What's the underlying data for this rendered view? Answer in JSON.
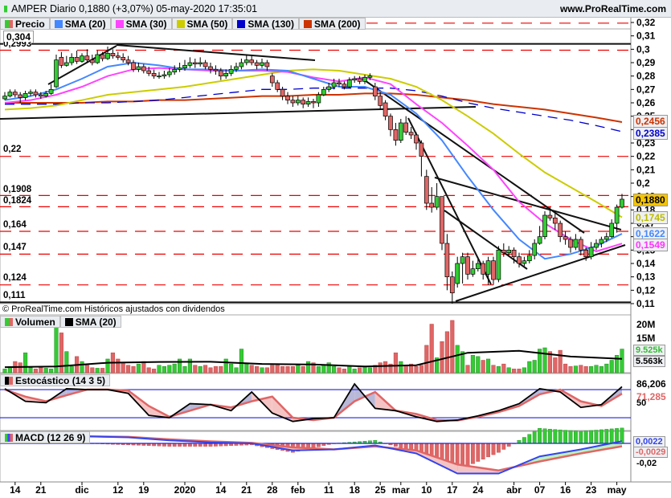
{
  "header": {
    "title": "AMPER Diario 0,1880 (+3,07%) 05-may-2020 17:35:01",
    "site": "www.ProRealTime.com"
  },
  "legend": [
    {
      "label": "Precio",
      "color": "#e06666"
    },
    {
      "label": "SMA (20)",
      "color": "#4488ff"
    },
    {
      "label": "SMA (30)",
      "color": "#ff44ff"
    },
    {
      "label": "SMA (50)",
      "color": "#cccc00"
    },
    {
      "label": "SMA (130)",
      "color": "#0000cc"
    },
    {
      "label": "SMA (200)",
      "color": "#cc3300"
    }
  ],
  "copyright": "© ProRealTime.com  Históricos ajustados con dividendos",
  "levels": {
    "top_label": "0,304",
    "labels": [
      "0,2993",
      "0,22",
      "0,1908",
      "0,1824",
      "0,164",
      "0,147",
      "0,124",
      "0,111"
    ]
  },
  "price_axis": [
    "0,32",
    "0,31",
    "0,3",
    "0,29",
    "0,28",
    "0,27",
    "0,26",
    "0,25",
    "0,24",
    "0,23",
    "0,22",
    "0,21",
    "0,2",
    "0,19",
    "0,18",
    "0,17",
    "0,16",
    "0,15",
    "0,14",
    "0,13",
    "0,12",
    "0,11"
  ],
  "badges": {
    "sma200": "0,2456",
    "sma130": "0,2385",
    "price": "0,1880",
    "sma50": "0,1745",
    "sma20": "0,1622",
    "sma30": "0,1549"
  },
  "volume": {
    "legend": [
      "Volumen",
      "SMA (20)"
    ],
    "axis": [
      "20M",
      "15M"
    ],
    "last": "9.525k",
    "sma_last": "5.563k"
  },
  "stochastic": {
    "legend": "Estocástico (14 3 5)",
    "k_last": "86,206",
    "d_last": "71,285",
    "axis": "50"
  },
  "macd": {
    "legend": "MACD (12 26 9)",
    "macd_last": "0,0022",
    "signal_last": "-0,0029",
    "axis": "-0,02"
  },
  "date_axis": [
    "14",
    "21",
    "dic",
    "12",
    "19",
    "2020",
    "14",
    "21",
    "28",
    "feb",
    "11",
    "18",
    "25",
    "mar",
    "10",
    "17",
    "24",
    "abr",
    "07",
    "16",
    "23",
    "may"
  ],
  "chart_data": {
    "type": "candlestick",
    "ylim": [
      0.11,
      0.32
    ],
    "candles_ohlc": [
      [
        0.263,
        0.268,
        0.262,
        0.265
      ],
      [
        0.265,
        0.27,
        0.264,
        0.268
      ],
      [
        0.268,
        0.27,
        0.264,
        0.266
      ],
      [
        0.266,
        0.268,
        0.26,
        0.264
      ],
      [
        0.264,
        0.269,
        0.262,
        0.267
      ],
      [
        0.267,
        0.27,
        0.265,
        0.268
      ],
      [
        0.268,
        0.27,
        0.264,
        0.266
      ],
      [
        0.266,
        0.268,
        0.263,
        0.265
      ],
      [
        0.265,
        0.269,
        0.264,
        0.267
      ],
      [
        0.267,
        0.274,
        0.266,
        0.27
      ],
      [
        0.272,
        0.296,
        0.271,
        0.292
      ],
      [
        0.294,
        0.298,
        0.286,
        0.288
      ],
      [
        0.288,
        0.295,
        0.287,
        0.29
      ],
      [
        0.29,
        0.297,
        0.288,
        0.294
      ],
      [
        0.294,
        0.299,
        0.289,
        0.291
      ],
      [
        0.291,
        0.297,
        0.29,
        0.295
      ],
      [
        0.295,
        0.3,
        0.29,
        0.292
      ],
      [
        0.292,
        0.296,
        0.288,
        0.29
      ],
      [
        0.29,
        0.299,
        0.289,
        0.296
      ],
      [
        0.296,
        0.298,
        0.291,
        0.293
      ],
      [
        0.293,
        0.302,
        0.292,
        0.297
      ],
      [
        0.297,
        0.3,
        0.293,
        0.295
      ],
      [
        0.295,
        0.298,
        0.292,
        0.294
      ],
      [
        0.294,
        0.297,
        0.29,
        0.292
      ],
      [
        0.292,
        0.295,
        0.288,
        0.29
      ],
      [
        0.29,
        0.292,
        0.283,
        0.285
      ],
      [
        0.285,
        0.29,
        0.283,
        0.287
      ],
      [
        0.287,
        0.289,
        0.282,
        0.284
      ],
      [
        0.284,
        0.287,
        0.28,
        0.282
      ],
      [
        0.282,
        0.285,
        0.278,
        0.28
      ],
      [
        0.28,
        0.283,
        0.278,
        0.28
      ],
      [
        0.28,
        0.284,
        0.278,
        0.281
      ],
      [
        0.281,
        0.286,
        0.279,
        0.283
      ],
      [
        0.283,
        0.288,
        0.281,
        0.285
      ],
      [
        0.285,
        0.29,
        0.283,
        0.286
      ],
      [
        0.286,
        0.292,
        0.284,
        0.288
      ],
      [
        0.288,
        0.294,
        0.286,
        0.29
      ],
      [
        0.29,
        0.293,
        0.286,
        0.289
      ],
      [
        0.289,
        0.294,
        0.287,
        0.29
      ],
      [
        0.29,
        0.292,
        0.285,
        0.287
      ],
      [
        0.287,
        0.29,
        0.282,
        0.285
      ],
      [
        0.285,
        0.288,
        0.281,
        0.284
      ],
      [
        0.284,
        0.286,
        0.277,
        0.28
      ],
      [
        0.28,
        0.285,
        0.278,
        0.282
      ],
      [
        0.282,
        0.288,
        0.28,
        0.285
      ],
      [
        0.285,
        0.29,
        0.283,
        0.287
      ],
      [
        0.287,
        0.293,
        0.285,
        0.29
      ],
      [
        0.29,
        0.296,
        0.288,
        0.292
      ],
      [
        0.292,
        0.295,
        0.288,
        0.29
      ],
      [
        0.29,
        0.292,
        0.285,
        0.288
      ],
      [
        0.288,
        0.293,
        0.286,
        0.29
      ],
      [
        0.29,
        0.292,
        0.284,
        0.287
      ],
      [
        0.28,
        0.282,
        0.272,
        0.275
      ],
      [
        0.275,
        0.277,
        0.268,
        0.27
      ],
      [
        0.27,
        0.272,
        0.262,
        0.265
      ],
      [
        0.265,
        0.268,
        0.259,
        0.262
      ],
      [
        0.262,
        0.265,
        0.257,
        0.26
      ],
      [
        0.26,
        0.265,
        0.258,
        0.262
      ],
      [
        0.262,
        0.264,
        0.256,
        0.259
      ],
      [
        0.259,
        0.264,
        0.257,
        0.261
      ],
      [
        0.261,
        0.263,
        0.256,
        0.26
      ],
      [
        0.26,
        0.268,
        0.257,
        0.266
      ],
      [
        0.266,
        0.272,
        0.265,
        0.27
      ],
      [
        0.27,
        0.275,
        0.268,
        0.272
      ],
      [
        0.272,
        0.278,
        0.27,
        0.275
      ],
      [
        0.275,
        0.278,
        0.272,
        0.274
      ],
      [
        0.274,
        0.276,
        0.27,
        0.272
      ],
      [
        0.272,
        0.279,
        0.271,
        0.277
      ],
      [
        0.277,
        0.28,
        0.275,
        0.278
      ],
      [
        0.278,
        0.28,
        0.274,
        0.276
      ],
      [
        0.276,
        0.281,
        0.274,
        0.279
      ],
      [
        0.279,
        0.282,
        0.277,
        0.28
      ],
      [
        0.272,
        0.275,
        0.262,
        0.265
      ],
      [
        0.265,
        0.268,
        0.255,
        0.258
      ],
      [
        0.26,
        0.262,
        0.247,
        0.25
      ],
      [
        0.25,
        0.252,
        0.235,
        0.24
      ],
      [
        0.24,
        0.245,
        0.228,
        0.232
      ],
      [
        0.232,
        0.248,
        0.23,
        0.245
      ],
      [
        0.245,
        0.25,
        0.236,
        0.238
      ],
      [
        0.238,
        0.242,
        0.233,
        0.236
      ],
      [
        0.236,
        0.238,
        0.225,
        0.23
      ],
      [
        0.23,
        0.232,
        0.205,
        0.22
      ],
      [
        0.205,
        0.21,
        0.18,
        0.185
      ],
      [
        0.185,
        0.197,
        0.178,
        0.182
      ],
      [
        0.182,
        0.2,
        0.18,
        0.19
      ],
      [
        0.19,
        0.19,
        0.15,
        0.155
      ],
      [
        0.155,
        0.162,
        0.12,
        0.13
      ],
      [
        0.13,
        0.134,
        0.11,
        0.118
      ],
      [
        0.125,
        0.145,
        0.122,
        0.14
      ],
      [
        0.14,
        0.148,
        0.125,
        0.145
      ],
      [
        0.145,
        0.148,
        0.128,
        0.132
      ],
      [
        0.132,
        0.142,
        0.13,
        0.136
      ],
      [
        0.136,
        0.143,
        0.134,
        0.14
      ],
      [
        0.14,
        0.142,
        0.128,
        0.132
      ],
      [
        0.132,
        0.145,
        0.124,
        0.142
      ],
      [
        0.142,
        0.145,
        0.124,
        0.128
      ],
      [
        0.128,
        0.153,
        0.126,
        0.15
      ],
      [
        0.15,
        0.155,
        0.145,
        0.148
      ],
      [
        0.148,
        0.153,
        0.145,
        0.15
      ],
      [
        0.15,
        0.152,
        0.14,
        0.145
      ],
      [
        0.145,
        0.148,
        0.137,
        0.14
      ],
      [
        0.14,
        0.145,
        0.138,
        0.142
      ],
      [
        0.142,
        0.15,
        0.14,
        0.146
      ],
      [
        0.146,
        0.158,
        0.143,
        0.155
      ],
      [
        0.155,
        0.168,
        0.154,
        0.16
      ],
      [
        0.16,
        0.179,
        0.158,
        0.176
      ],
      [
        0.176,
        0.182,
        0.172,
        0.174
      ],
      [
        0.174,
        0.178,
        0.165,
        0.17
      ],
      [
        0.17,
        0.172,
        0.156,
        0.16
      ],
      [
        0.16,
        0.164,
        0.154,
        0.158
      ],
      [
        0.158,
        0.16,
        0.148,
        0.152
      ],
      [
        0.152,
        0.162,
        0.15,
        0.158
      ],
      [
        0.158,
        0.16,
        0.146,
        0.15
      ],
      [
        0.15,
        0.152,
        0.142,
        0.145
      ],
      [
        0.145,
        0.156,
        0.143,
        0.152
      ],
      [
        0.152,
        0.158,
        0.15,
        0.155
      ],
      [
        0.155,
        0.16,
        0.152,
        0.158
      ],
      [
        0.158,
        0.163,
        0.156,
        0.16
      ],
      [
        0.16,
        0.173,
        0.159,
        0.17
      ],
      [
        0.17,
        0.184,
        0.163,
        0.182
      ],
      [
        0.182,
        0.192,
        0.181,
        0.188
      ]
    ],
    "sma_sample_step_days": 5,
    "sma": {
      "sma20": [
        0.262,
        0.265,
        0.27,
        0.278,
        0.287,
        0.29,
        0.288,
        0.285,
        0.285,
        0.284,
        0.285,
        0.284,
        0.278,
        0.272,
        0.272,
        0.266,
        0.252,
        0.232,
        0.205,
        0.18,
        0.158,
        0.1435,
        0.147,
        0.153,
        0.1622
      ],
      "sma30": [
        0.26,
        0.262,
        0.266,
        0.272,
        0.28,
        0.285,
        0.286,
        0.285,
        0.284,
        0.284,
        0.284,
        0.283,
        0.279,
        0.276,
        0.279,
        0.274,
        0.259,
        0.245,
        0.228,
        0.21,
        0.186,
        0.17,
        0.158,
        0.149,
        0.1549
      ],
      "sma50": [
        0.255,
        0.256,
        0.258,
        0.262,
        0.266,
        0.268,
        0.27,
        0.272,
        0.275,
        0.278,
        0.281,
        0.284,
        0.285,
        0.284,
        0.281,
        0.278,
        0.272,
        0.262,
        0.25,
        0.237,
        0.222,
        0.208,
        0.197,
        0.186,
        0.1745
      ],
      "sma130": [
        0.259,
        0.259,
        0.259,
        0.26,
        0.26,
        0.261,
        0.262,
        0.264,
        0.266,
        0.268,
        0.27,
        0.27,
        0.271,
        0.271,
        0.271,
        0.271,
        0.269,
        0.265,
        0.26,
        0.256,
        0.253,
        0.25,
        0.247,
        0.243,
        0.2385
      ],
      "sma200": [
        0.26,
        0.26,
        0.26,
        0.26,
        0.261,
        0.261,
        0.262,
        0.262,
        0.263,
        0.264,
        0.265,
        0.265,
        0.266,
        0.266,
        0.267,
        0.267,
        0.266,
        0.264,
        0.262,
        0.259,
        0.257,
        0.255,
        0.252,
        0.249,
        0.2456
      ]
    },
    "support_resistance": [
      0.2993,
      0.22,
      0.1908,
      0.1824,
      0.164,
      0.147,
      0.124
    ],
    "solid_levels": [
      0.304,
      0.111
    ],
    "volume_millions": [
      1.5,
      2.5,
      4.5,
      4,
      8,
      2,
      1.5,
      2,
      1.8,
      1.5,
      19,
      16,
      8.5,
      2.5,
      6.5,
      4.5,
      3,
      2,
      1.8,
      1.8,
      5.5,
      8,
      5.5,
      4,
      3,
      2.5,
      3.5,
      4.5,
      2,
      1.5,
      3,
      2.5,
      3,
      3.5,
      5.5,
      2.5,
      5.5,
      3,
      2.5,
      3,
      2,
      2.5,
      2.5,
      5.5,
      3.5,
      2,
      9.5,
      3.5,
      3,
      2.5,
      2,
      2,
      3,
      3,
      2.5,
      2.5,
      2.5,
      3,
      2.5,
      4.5,
      4,
      2.5,
      3,
      4,
      2.5,
      2,
      1.5,
      2.5,
      1.5,
      2,
      2.5,
      2,
      3,
      4,
      4.5,
      3.5,
      8,
      4.5,
      3,
      3.5,
      2.5,
      3,
      11,
      19.5,
      6,
      12.5,
      16.5,
      21,
      11,
      8.5,
      3,
      7,
      6.5,
      5,
      5.5,
      3,
      2.5,
      3.5,
      2,
      1.5,
      1.5,
      2,
      4.5,
      5,
      9.5,
      10,
      8.5,
      6,
      9,
      3.5,
      2.5,
      2.7,
      3,
      2.5,
      2.5,
      3,
      2.5,
      3.5,
      5,
      7,
      9.5
    ],
    "volume_sma20_step_days": 10,
    "volume_sma20": [
      2.2,
      2.5,
      4.0,
      4.3,
      4.4,
      3.5,
      3.3,
      2.5,
      3.0,
      8.0,
      8.8,
      6.5,
      5.563
    ],
    "stoch_step_days": 4,
    "stoch_k": [
      82,
      55,
      52,
      82,
      80,
      80,
      72,
      25,
      20,
      50,
      48,
      35,
      75,
      30,
      12,
      18,
      20,
      92,
      40,
      35,
      22,
      12,
      15,
      24,
      35,
      50,
      82,
      75,
      42,
      48,
      86.2
    ],
    "stoch_d": [
      80,
      65,
      55,
      68,
      80,
      80,
      78,
      45,
      22,
      35,
      48,
      42,
      55,
      65,
      20,
      15,
      20,
      55,
      75,
      35,
      28,
      15,
      14,
      22,
      32,
      45,
      70,
      80,
      55,
      45,
      71.3
    ],
    "stoch_levels": [
      80,
      20
    ],
    "macd_step_days": 8,
    "macd_line": [
      0.007,
      0.007,
      0.007,
      0.006,
      0.003,
      0.001,
      0,
      -0.007,
      -0.006,
      -0.002,
      -0.01,
      -0.03,
      -0.03,
      -0.013,
      -0.006,
      0.0022
    ],
    "macd_signal": [
      0.006,
      0.007,
      0.007,
      0.0065,
      0.004,
      0.002,
      0.0005,
      -0.004,
      -0.006,
      -0.003,
      -0.007,
      -0.021,
      -0.027,
      -0.018,
      -0.01,
      -0.0029
    ],
    "colors": {
      "up": "#33cc33",
      "down": "#e06666",
      "sma20": "#4488ff",
      "sma30": "#ff44ff",
      "sma50": "#cccc00",
      "sma130": "#0000cc",
      "sma200": "#cc3300",
      "levels": "#ee0000"
    }
  }
}
